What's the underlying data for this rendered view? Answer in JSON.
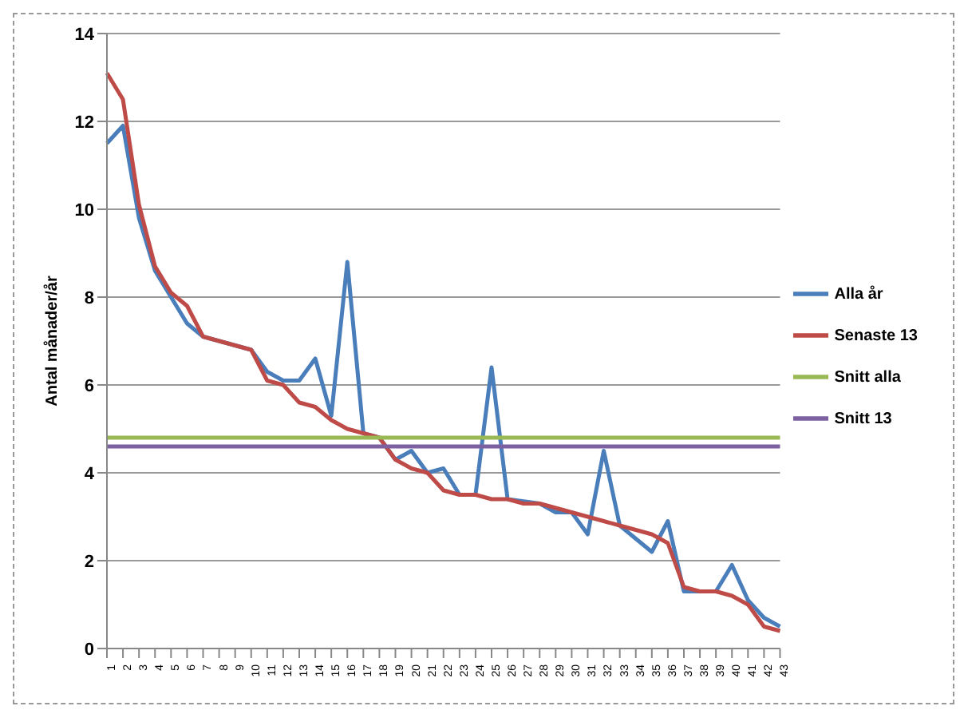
{
  "chart_data": {
    "type": "line",
    "ylabel": "Antal månader/år",
    "categories": [
      "1",
      "2",
      "3",
      "4",
      "5",
      "6",
      "7",
      "8",
      "9",
      "10",
      "11",
      "12",
      "13",
      "14",
      "15",
      "16",
      "17",
      "18",
      "19",
      "20",
      "21",
      "22",
      "23",
      "24",
      "25",
      "26",
      "27",
      "28",
      "29",
      "30",
      "31",
      "32",
      "33",
      "34",
      "35",
      "36",
      "37",
      "38",
      "39",
      "40",
      "41",
      "42",
      "43"
    ],
    "series": [
      {
        "name": "Alla år",
        "color": "#4a7ebb",
        "values": [
          11.5,
          11.9,
          9.8,
          8.6,
          8.0,
          7.4,
          7.1,
          null,
          null,
          6.8,
          6.3,
          6.1,
          6.1,
          6.6,
          5.3,
          8.8,
          4.9,
          4.8,
          4.3,
          4.5,
          4.0,
          4.1,
          3.5,
          3.5,
          6.4,
          3.4,
          null,
          3.3,
          3.1,
          3.1,
          2.6,
          4.5,
          2.8,
          2.5,
          2.2,
          2.9,
          1.3,
          1.3,
          1.3,
          1.9,
          1.1,
          0.7,
          0.5
        ]
      },
      {
        "name": "Senaste 13",
        "color": "#be4b48",
        "values": [
          13.1,
          12.5,
          10.1,
          8.7,
          8.1,
          7.8,
          7.1,
          7.0,
          6.9,
          6.8,
          6.1,
          6.0,
          5.6,
          5.5,
          5.2,
          5.0,
          4.9,
          4.8,
          4.3,
          4.1,
          4.0,
          3.6,
          3.5,
          3.5,
          3.4,
          3.4,
          3.3,
          3.3,
          3.2,
          3.1,
          3.0,
          2.9,
          2.8,
          2.7,
          2.6,
          2.4,
          1.4,
          1.3,
          1.3,
          1.2,
          1.0,
          0.5,
          0.4
        ]
      },
      {
        "name": "Snitt alla",
        "color": "#98b954",
        "values": [
          4.8,
          4.8,
          4.8,
          4.8,
          4.8,
          4.8,
          4.8,
          4.8,
          4.8,
          4.8,
          4.8,
          4.8,
          4.8,
          4.8,
          4.8,
          4.8,
          4.8,
          4.8,
          4.8,
          4.8,
          4.8,
          4.8,
          4.8,
          4.8,
          4.8,
          4.8,
          4.8,
          4.8,
          4.8,
          4.8,
          4.8,
          4.8,
          4.8,
          4.8,
          4.8,
          4.8,
          4.8,
          4.8,
          4.8,
          4.8,
          4.8,
          4.8,
          4.8
        ]
      },
      {
        "name": "Snitt 13",
        "color": "#7d60a0",
        "values": [
          4.6,
          4.6,
          4.6,
          4.6,
          4.6,
          4.6,
          4.6,
          4.6,
          4.6,
          4.6,
          4.6,
          4.6,
          4.6,
          4.6,
          4.6,
          4.6,
          4.6,
          4.6,
          4.6,
          4.6,
          4.6,
          4.6,
          4.6,
          4.6,
          4.6,
          4.6,
          4.6,
          4.6,
          4.6,
          4.6,
          4.6,
          4.6,
          4.6,
          4.6,
          4.6,
          4.6,
          4.6,
          4.6,
          4.6,
          4.6,
          4.6,
          4.6,
          4.6
        ]
      }
    ],
    "ylim": [
      0,
      14
    ],
    "yticks": [
      0,
      2,
      4,
      6,
      8,
      10,
      12,
      14
    ],
    "grid": "y",
    "legend": "right",
    "marker": "none",
    "line_style": "solid"
  }
}
